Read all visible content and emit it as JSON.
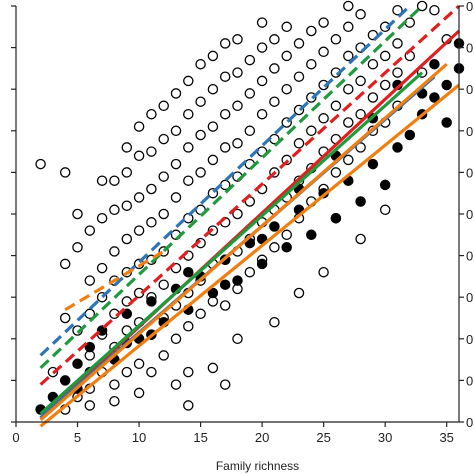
{
  "chart_data": {
    "type": "scatter",
    "title": "",
    "xlabel": "Family richness",
    "ylabel": "",
    "xlim": [
      0,
      36
    ],
    "ylim": [
      0,
      10
    ],
    "x_ticks": [
      0,
      5,
      10,
      15,
      20,
      25,
      30,
      35
    ],
    "x_tick_labels": [
      "0",
      "5",
      "10",
      "15",
      "20",
      "25",
      "30",
      "35"
    ],
    "right_tick_labels": [
      "0",
      "0",
      "0",
      "0",
      "0",
      "0",
      "0",
      "0",
      "0",
      "0",
      "0"
    ],
    "grid": false,
    "legend": "none",
    "series": [
      {
        "kind": "points",
        "marker": "open-circle",
        "color": "#000000",
        "points": [
          [
            2,
            6.2
          ],
          [
            4,
            6
          ],
          [
            3,
            1.2
          ],
          [
            4,
            2.5
          ],
          [
            4,
            3.8
          ],
          [
            5,
            0.6
          ],
          [
            5,
            2.2
          ],
          [
            5,
            4.2
          ],
          [
            5,
            5
          ],
          [
            6,
            0.8
          ],
          [
            6,
            1.6
          ],
          [
            6,
            2.6
          ],
          [
            6,
            3.4
          ],
          [
            6,
            4.6
          ],
          [
            7,
            1.2
          ],
          [
            7,
            2.1
          ],
          [
            7,
            3
          ],
          [
            7,
            3.7
          ],
          [
            7,
            4.9
          ],
          [
            7,
            5.8
          ],
          [
            8,
            0.9
          ],
          [
            8,
            1.8
          ],
          [
            8,
            2.6
          ],
          [
            8,
            3.4
          ],
          [
            8,
            4.1
          ],
          [
            8,
            5.1
          ],
          [
            8,
            5.8
          ],
          [
            9,
            1.2
          ],
          [
            9,
            2.2
          ],
          [
            9,
            2.9
          ],
          [
            9,
            3.6
          ],
          [
            9,
            4.4
          ],
          [
            9,
            5.2
          ],
          [
            9,
            6
          ],
          [
            9,
            6.6
          ],
          [
            10,
            1.4
          ],
          [
            10,
            2.4
          ],
          [
            10,
            3.1
          ],
          [
            10,
            3.8
          ],
          [
            10,
            4.6
          ],
          [
            10,
            5.4
          ],
          [
            10,
            6.4
          ],
          [
            10,
            7.1
          ],
          [
            11,
            1.2
          ],
          [
            11,
            2.1
          ],
          [
            11,
            3
          ],
          [
            11,
            3.9
          ],
          [
            11,
            4.8
          ],
          [
            11,
            5.6
          ],
          [
            11,
            6.5
          ],
          [
            11,
            7.4
          ],
          [
            12,
            1.6
          ],
          [
            12,
            2.5
          ],
          [
            12,
            3.3
          ],
          [
            12,
            4.1
          ],
          [
            12,
            5
          ],
          [
            12,
            5.9
          ],
          [
            12,
            6.8
          ],
          [
            12,
            7.6
          ],
          [
            13,
            2
          ],
          [
            13,
            2.8
          ],
          [
            13,
            3.7
          ],
          [
            13,
            4.5
          ],
          [
            13,
            5.4
          ],
          [
            13,
            6.2
          ],
          [
            13,
            7
          ],
          [
            13,
            7.9
          ],
          [
            14,
            1.2
          ],
          [
            14,
            2.3
          ],
          [
            14,
            3.1
          ],
          [
            14,
            4
          ],
          [
            14,
            4.9
          ],
          [
            14,
            5.8
          ],
          [
            14,
            6.6
          ],
          [
            14,
            7.4
          ],
          [
            14,
            8.2
          ],
          [
            15,
            2.6
          ],
          [
            15,
            3.4
          ],
          [
            15,
            4.3
          ],
          [
            15,
            5.1
          ],
          [
            15,
            6
          ],
          [
            15,
            6.9
          ],
          [
            15,
            7.7
          ],
          [
            15,
            8.6
          ],
          [
            16,
            2.9
          ],
          [
            16,
            3.8
          ],
          [
            16,
            4.6
          ],
          [
            16,
            5.5
          ],
          [
            16,
            6.3
          ],
          [
            16,
            7.1
          ],
          [
            16,
            8
          ],
          [
            16,
            8.8
          ],
          [
            17,
            2.8
          ],
          [
            17,
            3.9
          ],
          [
            17,
            4.8
          ],
          [
            17,
            5.7
          ],
          [
            17,
            6.6
          ],
          [
            17,
            7.4
          ],
          [
            17,
            8.3
          ],
          [
            17,
            9.1
          ],
          [
            18,
            3.2
          ],
          [
            18,
            4.1
          ],
          [
            18,
            5
          ],
          [
            18,
            5.9
          ],
          [
            18,
            6.7
          ],
          [
            18,
            7.6
          ],
          [
            18,
            8.4
          ],
          [
            18,
            9.2
          ],
          [
            19,
            3.6
          ],
          [
            19,
            4.4
          ],
          [
            19,
            5.3
          ],
          [
            19,
            6.2
          ],
          [
            19,
            7
          ],
          [
            19,
            7.9
          ],
          [
            19,
            8.7
          ],
          [
            20,
            3.9
          ],
          [
            20,
            4.8
          ],
          [
            20,
            5.6
          ],
          [
            20,
            6.5
          ],
          [
            20,
            7.4
          ],
          [
            20,
            8.2
          ],
          [
            20,
            9
          ],
          [
            20,
            9.6
          ],
          [
            21,
            4.2
          ],
          [
            21,
            5.1
          ],
          [
            21,
            6
          ],
          [
            21,
            6.8
          ],
          [
            21,
            7.7
          ],
          [
            21,
            8.5
          ],
          [
            21,
            9.2
          ],
          [
            22,
            4.5
          ],
          [
            22,
            5.4
          ],
          [
            22,
            6.3
          ],
          [
            22,
            7.2
          ],
          [
            22,
            8
          ],
          [
            22,
            8.8
          ],
          [
            22,
            9.5
          ],
          [
            23,
            4.9
          ],
          [
            23,
            5.8
          ],
          [
            23,
            6.7
          ],
          [
            23,
            7.5
          ],
          [
            23,
            8.3
          ],
          [
            23,
            9.1
          ],
          [
            24,
            5.3
          ],
          [
            24,
            6.1
          ],
          [
            24,
            7
          ],
          [
            24,
            7.8
          ],
          [
            24,
            8.6
          ],
          [
            24,
            9.4
          ],
          [
            25,
            5.6
          ],
          [
            25,
            6.5
          ],
          [
            25,
            7.3
          ],
          [
            25,
            8.1
          ],
          [
            25,
            8.9
          ],
          [
            25,
            9.6
          ],
          [
            26,
            6
          ],
          [
            26,
            6.8
          ],
          [
            26,
            7.6
          ],
          [
            26,
            8.4
          ],
          [
            26,
            9.2
          ],
          [
            27,
            6.3
          ],
          [
            27,
            7.2
          ],
          [
            27,
            8
          ],
          [
            27,
            8.8
          ],
          [
            27,
            9.5
          ],
          [
            28,
            6.6
          ],
          [
            28,
            7.4
          ],
          [
            28,
            8.2
          ],
          [
            28,
            9
          ],
          [
            28,
            9.8
          ],
          [
            29,
            7
          ],
          [
            29,
            7.8
          ],
          [
            29,
            8.6
          ],
          [
            29,
            9.3
          ],
          [
            30,
            7.2
          ],
          [
            30,
            8.1
          ],
          [
            30,
            8.8
          ],
          [
            30,
            9.5
          ],
          [
            31,
            7.6
          ],
          [
            31,
            8.4
          ],
          [
            31,
            9.1
          ],
          [
            31,
            9.9
          ],
          [
            32,
            8.8
          ],
          [
            32,
            9.6
          ],
          [
            30,
            5.1
          ],
          [
            28,
            4.4
          ],
          [
            25,
            3.6
          ],
          [
            23,
            3.1
          ],
          [
            18,
            2
          ],
          [
            16,
            1.3
          ],
          [
            13,
            0.9
          ],
          [
            10,
            0.7
          ],
          [
            8,
            0.5
          ],
          [
            6,
            0.4
          ],
          [
            4,
            0.3
          ],
          [
            17,
            0.9
          ],
          [
            14,
            0.4
          ],
          [
            21,
            2.4
          ],
          [
            26,
            4.9
          ],
          [
            27,
            10
          ],
          [
            33,
            10
          ],
          [
            34,
            9.9
          ],
          [
            35,
            9.2
          ],
          [
            33,
            8.4
          ]
        ]
      },
      {
        "kind": "points",
        "marker": "filled-circle",
        "color": "#000000",
        "points": [
          [
            2,
            0.3
          ],
          [
            3,
            0.6
          ],
          [
            4,
            1
          ],
          [
            5,
            1.4
          ],
          [
            6,
            1.8
          ],
          [
            7,
            2.2
          ],
          [
            8,
            1.5
          ],
          [
            9,
            2.6
          ],
          [
            10,
            2
          ],
          [
            11,
            2.9
          ],
          [
            12,
            2.4
          ],
          [
            13,
            3.2
          ],
          [
            14,
            2.7
          ],
          [
            15,
            3.5
          ],
          [
            16,
            3.1
          ],
          [
            17,
            3.9
          ],
          [
            18,
            3.4
          ],
          [
            19,
            4.3
          ],
          [
            20,
            3.8
          ],
          [
            21,
            4.7
          ],
          [
            22,
            4.2
          ],
          [
            23,
            5.1
          ],
          [
            24,
            4.5
          ],
          [
            25,
            5.5
          ],
          [
            26,
            4.9
          ],
          [
            27,
            5.8
          ],
          [
            28,
            5.3
          ],
          [
            29,
            6.2
          ],
          [
            30,
            5.7
          ],
          [
            31,
            6.6
          ],
          [
            32,
            6.9
          ],
          [
            33,
            7.4
          ],
          [
            34,
            7.8
          ],
          [
            35,
            7.2
          ],
          [
            36,
            8.5
          ],
          [
            35,
            8.1
          ],
          [
            33,
            7.9
          ],
          [
            31,
            8.1
          ],
          [
            29,
            7.3
          ],
          [
            26,
            6.4
          ],
          [
            23,
            5.6
          ],
          [
            20,
            4.4
          ],
          [
            17,
            3.3
          ],
          [
            14,
            3.6
          ],
          [
            11,
            2.1
          ],
          [
            9,
            1.9
          ],
          [
            6,
            1.2
          ],
          [
            5,
            0.8
          ],
          [
            36,
            9.1
          ],
          [
            34,
            8.6
          ]
        ]
      },
      {
        "kind": "line",
        "name": "",
        "color": "#2e75b6",
        "dash": true,
        "points": [
          [
            2,
            1.6
          ],
          [
            32,
            10
          ]
        ]
      },
      {
        "kind": "line",
        "name": "",
        "color": "#1f9a3e",
        "dash": true,
        "points": [
          [
            2,
            1.3
          ],
          [
            33,
            10
          ]
        ]
      },
      {
        "kind": "line",
        "name": "",
        "color": "#e02020",
        "dash": true,
        "points": [
          [
            2,
            0.9
          ],
          [
            36,
            10
          ]
        ]
      },
      {
        "kind": "line",
        "name": "",
        "color": "#f07f12",
        "dash": true,
        "points": [
          [
            4,
            2.7
          ],
          [
            12,
            4.1
          ]
        ]
      },
      {
        "kind": "line",
        "name": "",
        "color": "#e02020",
        "dash": false,
        "points": [
          [
            2,
            0.1
          ],
          [
            36,
            9.4
          ]
        ]
      },
      {
        "kind": "line",
        "name": "",
        "color": "#2e75b6",
        "dash": false,
        "points": [
          [
            2,
            0.1
          ],
          [
            34,
            8.3
          ]
        ]
      },
      {
        "kind": "line",
        "name": "",
        "color": "#1f9a3e",
        "dash": false,
        "points": [
          [
            2,
            0.2
          ],
          [
            33,
            8.4
          ]
        ]
      },
      {
        "kind": "line",
        "name": "",
        "color": "#f07f12",
        "dash": false,
        "points": [
          [
            2,
            0.05
          ],
          [
            35,
            8.6
          ]
        ]
      },
      {
        "kind": "line",
        "name": "",
        "color": "#f07f12",
        "dash": false,
        "points": [
          [
            2,
            -0.1
          ],
          [
            36,
            8.1
          ]
        ]
      }
    ]
  }
}
